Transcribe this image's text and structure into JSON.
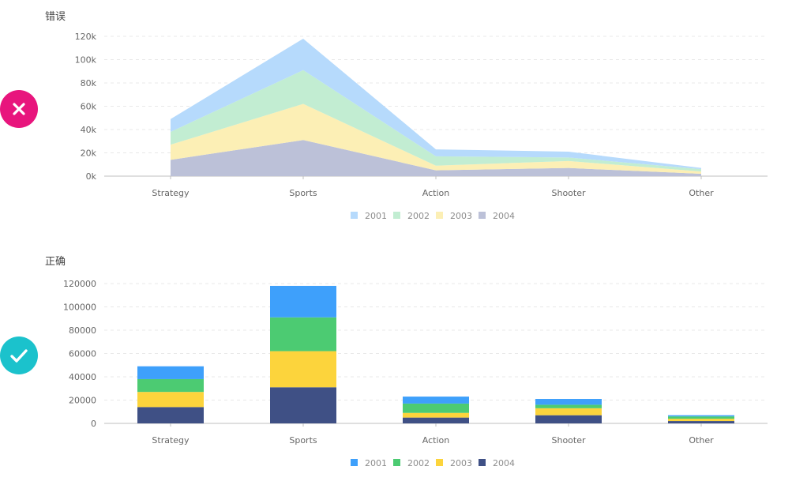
{
  "panels": {
    "wrong": {
      "title": "错误",
      "badge_icon": "close-icon",
      "badge_color": "#e8157d"
    },
    "right": {
      "title": "正确",
      "badge_icon": "check-icon",
      "badge_color": "#1bc2cc"
    }
  },
  "chart_data": [
    {
      "type": "area",
      "stacked": true,
      "title": "错误",
      "categories": [
        "Strategy",
        "Sports",
        "Action",
        "Shooter",
        "Other"
      ],
      "series": [
        {
          "name": "2004",
          "values": [
            14000,
            31000,
            5000,
            7000,
            2000
          ],
          "color": "#bcc1d8"
        },
        {
          "name": "2003",
          "values": [
            13000,
            31000,
            4000,
            6000,
            2000
          ],
          "color": "#fcefb5"
        },
        {
          "name": "2002",
          "values": [
            11000,
            29000,
            8000,
            3000,
            2000
          ],
          "color": "#c2edd2"
        },
        {
          "name": "2001",
          "values": [
            11000,
            27000,
            6000,
            5000,
            1000
          ],
          "color": "#b6dafc"
        }
      ],
      "ylim": [
        0,
        120000
      ],
      "yticks": [
        "0k",
        "20k",
        "40k",
        "60k",
        "80k",
        "100k",
        "120k"
      ],
      "grid": true,
      "legend": "bottom"
    },
    {
      "type": "bar",
      "stacked": true,
      "title": "正确",
      "categories": [
        "Strategy",
        "Sports",
        "Action",
        "Shooter",
        "Other"
      ],
      "series": [
        {
          "name": "2004",
          "values": [
            14000,
            31000,
            5000,
            7000,
            2000
          ],
          "color": "#3f5085"
        },
        {
          "name": "2003",
          "values": [
            13000,
            31000,
            4000,
            6000,
            2000
          ],
          "color": "#fcd43c"
        },
        {
          "name": "2002",
          "values": [
            11000,
            29000,
            8000,
            3000,
            2000
          ],
          "color": "#4ccb72"
        },
        {
          "name": "2001",
          "values": [
            11000,
            27000,
            6000,
            5000,
            1000
          ],
          "color": "#3ea0fb"
        }
      ],
      "ylim": [
        0,
        120000
      ],
      "yticks": [
        "0",
        "20000",
        "40000",
        "60000",
        "80000",
        "100000",
        "120000"
      ],
      "grid": true,
      "legend": "bottom",
      "legend_order": [
        "2001",
        "2002",
        "2003",
        "2004"
      ]
    }
  ]
}
